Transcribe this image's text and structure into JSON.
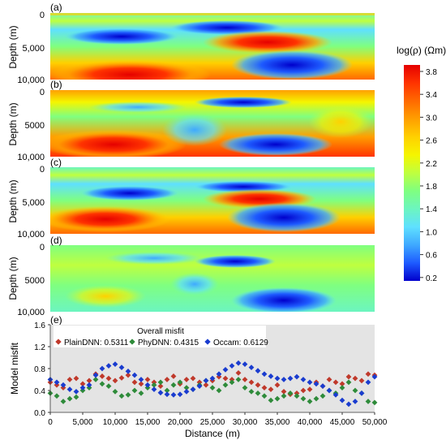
{
  "figure": {
    "panels": [
      {
        "label": "(a)",
        "ylabel": "Depth (m)",
        "yticks": [
          "0",
          "5,000",
          "10,000"
        ]
      },
      {
        "label": "(b)",
        "ylabel": "Depth (m)",
        "yticks": [
          "0",
          "5000",
          "10,000"
        ]
      },
      {
        "label": "(c)",
        "ylabel": "Depth (m)",
        "yticks": [
          "0",
          "5,000",
          "10,000"
        ]
      },
      {
        "label": "(d)",
        "ylabel": "Depth (m)",
        "yticks": [
          "0",
          "5000",
          "10,000"
        ]
      }
    ],
    "colorbar": {
      "title": "log(ρ) (Ωm)",
      "ticks": [
        "3.8",
        "3.4",
        "3.0",
        "2.6",
        "2.2",
        "1.8",
        "1.4",
        "1.0",
        "0.6",
        "0.2"
      ],
      "colors": [
        "#0000cc",
        "#1e5bff",
        "#3fa9ff",
        "#5fe0ff",
        "#6cf5c0",
        "#7fff80",
        "#bfff3f",
        "#f5f500",
        "#ffd000",
        "#ff9f00",
        "#ff6a00",
        "#ff3300",
        "#e50000"
      ]
    }
  },
  "chart_data": {
    "type": "scatter",
    "label": "(e)",
    "title": "Overall misfit",
    "xlabel": "Distance (m)",
    "ylabel": "Model misfit",
    "xlim": [
      0,
      50000
    ],
    "ylim": [
      0,
      1.6
    ],
    "xticks": [
      "0",
      "5,000",
      "10,000",
      "15,000",
      "20,000",
      "25,000",
      "30,000",
      "35,000",
      "40,000",
      "45,000",
      "50,000"
    ],
    "yticks": [
      "0.0",
      "0.4",
      "0.8",
      "1.2",
      "1.6"
    ],
    "series": [
      {
        "name": "PlainDNN: 0.5311",
        "color": "#c0392b",
        "x": [
          0,
          1000,
          2000,
          3000,
          4000,
          5000,
          6000,
          7000,
          8000,
          9000,
          10000,
          11000,
          12000,
          13000,
          14000,
          15000,
          16000,
          17000,
          18000,
          19000,
          20000,
          21000,
          22000,
          23000,
          24000,
          25000,
          26000,
          27000,
          28000,
          29000,
          30000,
          31000,
          32000,
          33000,
          34000,
          35000,
          36000,
          37000,
          38000,
          39000,
          40000,
          41000,
          42000,
          43000,
          44000,
          45000,
          46000,
          47000,
          48000,
          49000,
          50000
        ],
        "y": [
          0.55,
          0.5,
          0.45,
          0.6,
          0.62,
          0.52,
          0.58,
          0.7,
          0.66,
          0.62,
          0.58,
          0.63,
          0.68,
          0.55,
          0.52,
          0.6,
          0.55,
          0.48,
          0.6,
          0.66,
          0.52,
          0.6,
          0.62,
          0.55,
          0.5,
          0.58,
          0.65,
          0.62,
          0.6,
          0.72,
          0.6,
          0.55,
          0.5,
          0.45,
          0.42,
          0.5,
          0.38,
          0.33,
          0.35,
          0.4,
          0.42,
          0.55,
          0.48,
          0.6,
          0.55,
          0.52,
          0.65,
          0.62,
          0.58,
          0.7,
          0.68
        ]
      },
      {
        "name": "PhyDNN: 0.4315",
        "color": "#2e8b3a",
        "x": [
          0,
          1000,
          2000,
          3000,
          4000,
          5000,
          6000,
          7000,
          8000,
          9000,
          10000,
          11000,
          12000,
          13000,
          14000,
          15000,
          16000,
          17000,
          18000,
          19000,
          20000,
          21000,
          22000,
          23000,
          24000,
          25000,
          26000,
          27000,
          28000,
          29000,
          30000,
          31000,
          32000,
          33000,
          34000,
          35000,
          36000,
          37000,
          38000,
          39000,
          40000,
          41000,
          42000,
          43000,
          44000,
          45000,
          46000,
          47000,
          48000,
          49000,
          50000
        ],
        "y": [
          0.35,
          0.3,
          0.2,
          0.25,
          0.28,
          0.4,
          0.45,
          0.6,
          0.52,
          0.48,
          0.38,
          0.3,
          0.32,
          0.4,
          0.35,
          0.45,
          0.5,
          0.55,
          0.4,
          0.5,
          0.55,
          0.45,
          0.42,
          0.5,
          0.58,
          0.45,
          0.4,
          0.5,
          0.55,
          0.6,
          0.45,
          0.38,
          0.35,
          0.3,
          0.22,
          0.25,
          0.3,
          0.35,
          0.3,
          0.25,
          0.2,
          0.25,
          0.3,
          0.4,
          0.35,
          0.45,
          0.55,
          0.4,
          0.35,
          0.2,
          0.18
        ]
      },
      {
        "name": "Occam: 0.6129",
        "color": "#1a3ccf",
        "x": [
          0,
          1000,
          2000,
          3000,
          4000,
          5000,
          6000,
          7000,
          8000,
          9000,
          10000,
          11000,
          12000,
          13000,
          14000,
          15000,
          16000,
          17000,
          18000,
          19000,
          20000,
          21000,
          22000,
          23000,
          24000,
          25000,
          26000,
          27000,
          28000,
          29000,
          30000,
          31000,
          32000,
          33000,
          34000,
          35000,
          36000,
          37000,
          38000,
          39000,
          40000,
          41000,
          42000,
          43000,
          44000,
          45000,
          46000,
          47000,
          48000,
          49000,
          50000
        ],
        "y": [
          0.6,
          0.55,
          0.5,
          0.42,
          0.38,
          0.45,
          0.5,
          0.68,
          0.8,
          0.85,
          0.88,
          0.82,
          0.75,
          0.68,
          0.6,
          0.5,
          0.42,
          0.36,
          0.33,
          0.32,
          0.33,
          0.38,
          0.42,
          0.48,
          0.58,
          0.62,
          0.7,
          0.78,
          0.85,
          0.9,
          0.88,
          0.82,
          0.76,
          0.7,
          0.66,
          0.62,
          0.6,
          0.62,
          0.65,
          0.6,
          0.55,
          0.52,
          0.48,
          0.4,
          0.32,
          0.22,
          0.15,
          0.2,
          0.35,
          0.55,
          0.65
        ]
      }
    ],
    "legend_placement": "top",
    "grid": false
  }
}
